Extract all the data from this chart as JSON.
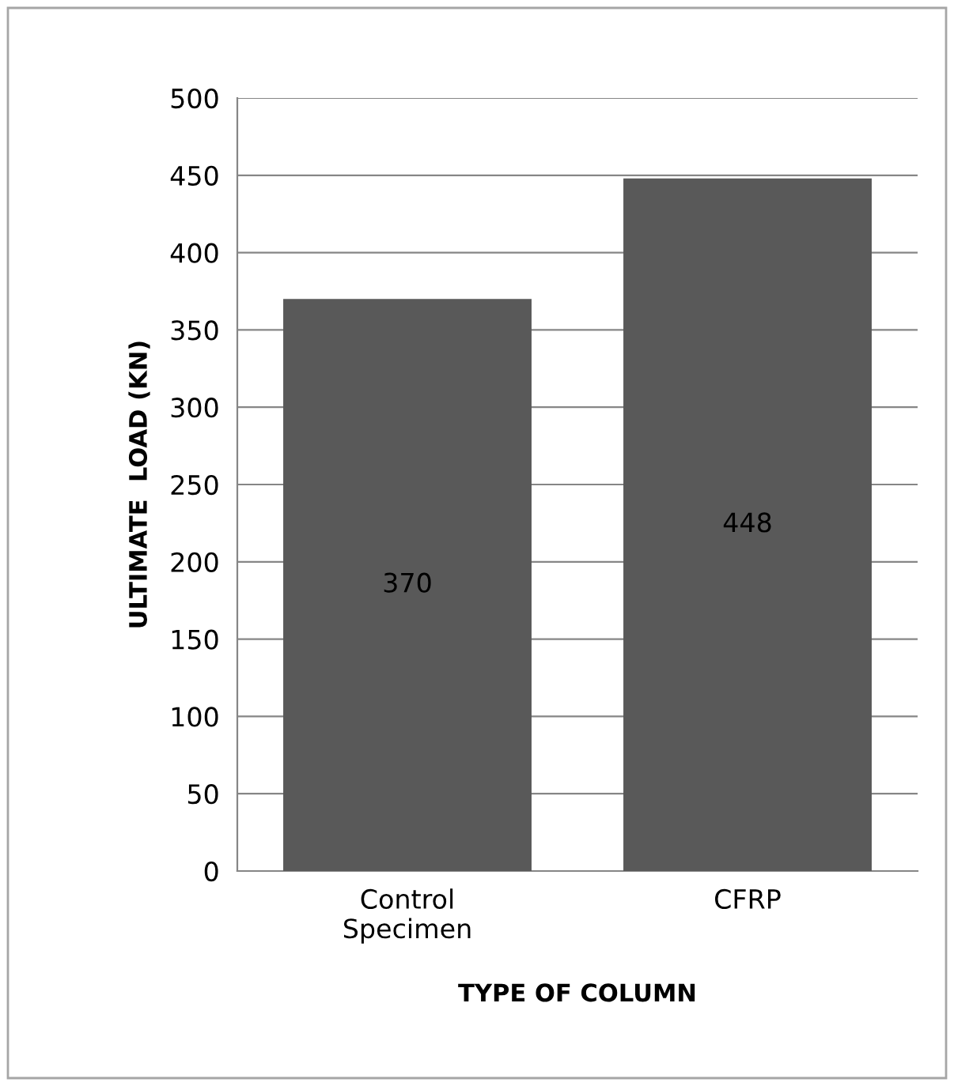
{
  "chart_data": {
    "type": "bar",
    "xlabel": "TYPE OF COLUMN",
    "ylabel": "ULTIMATE  LOAD (KN)",
    "categories": [
      "Control Specimen",
      "CFRP"
    ],
    "values": [
      370,
      448
    ],
    "color": "#595959",
    "ylim": [
      0,
      500
    ],
    "yticks": [
      0,
      50,
      100,
      150,
      200,
      250,
      300,
      350,
      400,
      450,
      500
    ],
    "grid": "y",
    "data_labels": true,
    "legend": false
  }
}
